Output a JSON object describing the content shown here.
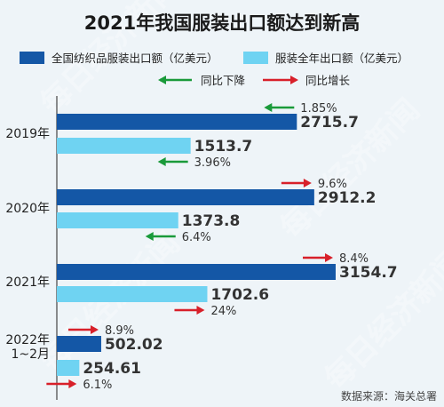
{
  "colors": {
    "total": "#1457a6",
    "apparel": "#6fd3f2",
    "down": "#1a9a3a",
    "up": "#d8202a",
    "background": "#eef4f8"
  },
  "chart_data": {
    "type": "bar",
    "orientation": "horizontal",
    "title": "2021年我国服装出口额达到新高",
    "categories": [
      "2019年",
      "2020年",
      "2021年",
      "2022年\n1~2月"
    ],
    "series": [
      {
        "name": "全国纺织品服装出口额（亿美元）",
        "values": [
          2715.7,
          2912.2,
          3154.7,
          502.02
        ],
        "labels": [
          "2715.7",
          "2912.2",
          "3154.7",
          "502.02"
        ],
        "yoy": [
          "1.85%",
          "9.6%",
          "8.4%",
          "8.9%"
        ],
        "yoy_direction": [
          "down",
          "up",
          "up",
          "up"
        ]
      },
      {
        "name": "服装全年出口额（亿美元）",
        "values": [
          1513.7,
          1373.8,
          1702.6,
          254.61
        ],
        "labels": [
          "1513.7",
          "1373.8",
          "1702.6",
          "254.61"
        ],
        "yoy": [
          "3.96%",
          "6.4%",
          "24%",
          "6.1%"
        ],
        "yoy_direction": [
          "down",
          "down",
          "up",
          "up"
        ]
      }
    ],
    "legend": {
      "down_label": "同比下降",
      "up_label": "同比增长",
      "position": "top"
    },
    "xlim": [
      0,
      3154.7
    ],
    "grid": false
  },
  "source": "数据来源：海关总署",
  "watermark": "每日经济新闻"
}
